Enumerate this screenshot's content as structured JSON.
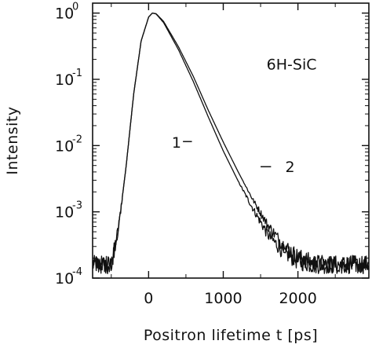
{
  "chart_data": {
    "type": "line",
    "xlabel": "Positron lifetime  t [ps]",
    "ylabel": "Intensity",
    "xlim": [
      -750,
      2950
    ],
    "ylim_log10": [
      -4,
      0.15
    ],
    "y_scale": "log",
    "x_ticks": [
      0,
      1000,
      2000
    ],
    "x_tick_labels": [
      "0",
      "1000",
      "2000"
    ],
    "y_ticks": [
      {
        "base": "10",
        "exp": "0",
        "log": 0
      },
      {
        "base": "10",
        "exp": "-1",
        "log": -1
      },
      {
        "base": "10",
        "exp": "-2",
        "log": -2
      },
      {
        "base": "10",
        "exp": "-3",
        "log": -3
      },
      {
        "base": "10",
        "exp": "-4",
        "log": -4
      }
    ],
    "annotations": [
      {
        "text": "6H-SiC",
        "x": 1580,
        "y": 0.17
      },
      {
        "text": "1",
        "x": 310,
        "y": 0.0113,
        "leader_x": [
          460,
          580
        ],
        "leader_y": 0.0115
      },
      {
        "text": "2",
        "x": 1830,
        "y": 0.0048,
        "leader_x": [
          1500,
          1640
        ],
        "leader_y": 0.0048
      }
    ],
    "series": [
      {
        "label": "1",
        "x": [
          -750,
          -500,
          -400,
          -300,
          -200,
          -100,
          0,
          50,
          100,
          200,
          400,
          600,
          800,
          1000,
          1200,
          1400,
          1600,
          1800,
          2000,
          2200,
          2400,
          2700,
          2950
        ],
        "y": [
          0.00016,
          0.00016,
          0.0006,
          0.005,
          0.06,
          0.38,
          0.87,
          1.0,
          0.97,
          0.72,
          0.28,
          0.092,
          0.027,
          0.0083,
          0.0029,
          0.0011,
          0.00045,
          0.00025,
          0.00018,
          0.00016,
          0.00016,
          0.00016,
          0.00016
        ]
      },
      {
        "label": "2",
        "x": [
          -750,
          -500,
          -400,
          -300,
          -200,
          -100,
          0,
          50,
          100,
          200,
          400,
          600,
          800,
          1000,
          1200,
          1400,
          1600,
          1800,
          2000,
          2200,
          2400,
          2700,
          2950
        ],
        "y": [
          0.00016,
          0.00016,
          0.0006,
          0.005,
          0.06,
          0.38,
          0.87,
          1.0,
          0.98,
          0.75,
          0.31,
          0.11,
          0.034,
          0.0113,
          0.004,
          0.0015,
          0.00062,
          0.00032,
          0.00021,
          0.00017,
          0.00016,
          0.00016,
          0.00016
        ]
      }
    ]
  }
}
